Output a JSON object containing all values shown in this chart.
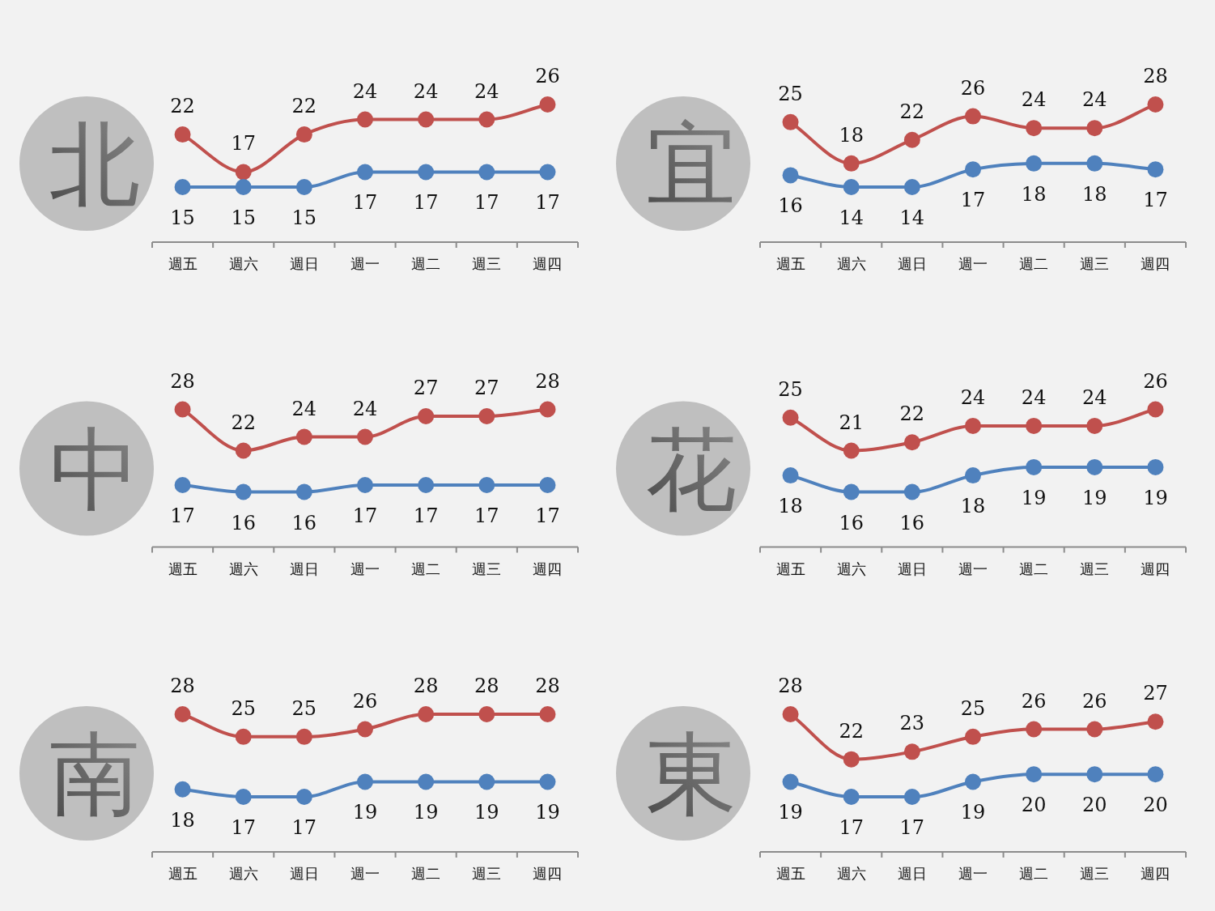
{
  "chart_data": [
    {
      "type": "line",
      "title": "北",
      "categories": [
        "週五",
        "週六",
        "週日",
        "週一",
        "週二",
        "週三",
        "週四"
      ],
      "series": [
        {
          "color": "#c0504d",
          "values": [
            22,
            17,
            22,
            24,
            24,
            24,
            26
          ]
        },
        {
          "color": "#4f81bd",
          "values": [
            15,
            15,
            15,
            17,
            17,
            17,
            17
          ]
        }
      ],
      "data_labels": true,
      "marker": "circle"
    },
    {
      "type": "line",
      "title": "宜",
      "categories": [
        "週五",
        "週六",
        "週日",
        "週一",
        "週二",
        "週三",
        "週四"
      ],
      "series": [
        {
          "color": "#c0504d",
          "values": [
            25,
            18,
            22,
            26,
            24,
            24,
            28
          ]
        },
        {
          "color": "#4f81bd",
          "values": [
            16,
            14,
            14,
            17,
            18,
            18,
            17
          ]
        }
      ],
      "data_labels": true,
      "marker": "circle"
    },
    {
      "type": "line",
      "title": "中",
      "categories": [
        "週五",
        "週六",
        "週日",
        "週一",
        "週二",
        "週三",
        "週四"
      ],
      "series": [
        {
          "color": "#c0504d",
          "values": [
            28,
            22,
            24,
            24,
            27,
            27,
            28
          ]
        },
        {
          "color": "#4f81bd",
          "values": [
            17,
            16,
            16,
            17,
            17,
            17,
            17
          ]
        }
      ],
      "data_labels": true,
      "marker": "circle"
    },
    {
      "type": "line",
      "title": "花",
      "categories": [
        "週五",
        "週六",
        "週日",
        "週一",
        "週二",
        "週三",
        "週四"
      ],
      "series": [
        {
          "color": "#c0504d",
          "values": [
            25,
            21,
            22,
            24,
            24,
            24,
            26
          ]
        },
        {
          "color": "#4f81bd",
          "values": [
            18,
            16,
            16,
            18,
            19,
            19,
            19
          ]
        }
      ],
      "data_labels": true,
      "marker": "circle"
    },
    {
      "type": "line",
      "title": "南",
      "categories": [
        "週五",
        "週六",
        "週日",
        "週一",
        "週二",
        "週三",
        "週四"
      ],
      "series": [
        {
          "color": "#c0504d",
          "values": [
            28,
            25,
            25,
            26,
            28,
            28,
            28
          ]
        },
        {
          "color": "#4f81bd",
          "values": [
            18,
            17,
            17,
            19,
            19,
            19,
            19
          ]
        }
      ],
      "data_labels": true,
      "marker": "circle"
    },
    {
      "type": "line",
      "title": "東",
      "categories": [
        "週五",
        "週六",
        "週日",
        "週一",
        "週二",
        "週三",
        "週四"
      ],
      "series": [
        {
          "color": "#c0504d",
          "values": [
            28,
            22,
            23,
            25,
            26,
            26,
            27
          ]
        },
        {
          "color": "#4f81bd",
          "values": [
            19,
            17,
            17,
            19,
            20,
            20,
            20
          ]
        }
      ],
      "data_labels": true,
      "marker": "circle"
    }
  ]
}
